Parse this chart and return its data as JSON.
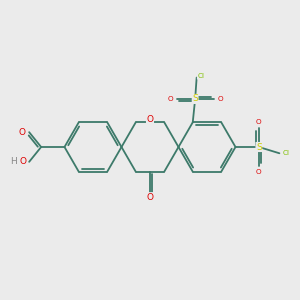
{
  "background_color": "#ebebeb",
  "bond_color": "#3d7a6a",
  "bond_lw": 1.3,
  "atom_colors": {
    "O": "#dd0000",
    "S": "#cccc00",
    "Cl": "#80bf00",
    "H": "#888888"
  },
  "fs": 6.5,
  "fss": 5.2,
  "bl": 0.95
}
